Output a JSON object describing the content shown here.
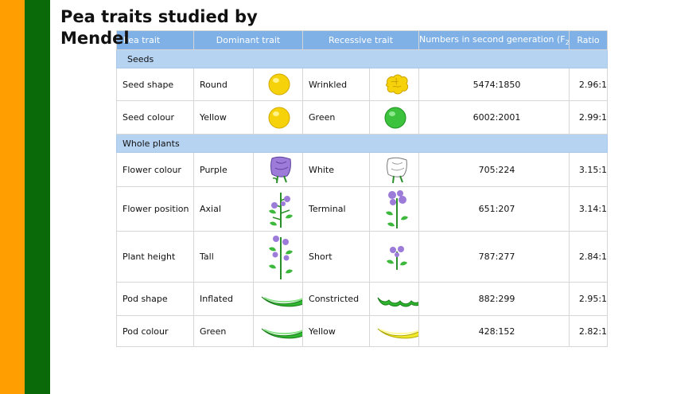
{
  "slide": {
    "title": "Pea traits studied by Mendel"
  },
  "table": {
    "headers": [
      "Pea trait",
      "Dominant trait",
      "Recessive trait",
      "Numbers in second generation (F",
      "2",
      ")",
      "Ratio"
    ],
    "sections": [
      {
        "label": "Seeds"
      },
      {
        "label": "Whole plants"
      }
    ],
    "rows": [
      {
        "trait": "Seed shape",
        "dominant": "Round",
        "recessive": "Wrinkled",
        "numbers": "5474:1850",
        "ratio": "2.96:1",
        "dom_icon": "round-seed-icon",
        "rec_icon": "wrinkled-seed-icon"
      },
      {
        "trait": "Seed colour",
        "dominant": "Yellow",
        "recessive": "Green",
        "numbers": "6002:2001",
        "ratio": "2.99:1",
        "dom_icon": "yellow-seed-icon",
        "rec_icon": "green-seed-icon"
      },
      {
        "trait": "Flower colour",
        "dominant": "Purple",
        "recessive": "White",
        "numbers": "705:224",
        "ratio": "3.15:1",
        "dom_icon": "purple-flower-icon",
        "rec_icon": "white-flower-icon"
      },
      {
        "trait": "Flower position",
        "dominant": "Axial",
        "recessive": "Terminal",
        "numbers": "651:207",
        "ratio": "3.14:1",
        "dom_icon": "axial-flower-plant-icon",
        "rec_icon": "terminal-flower-plant-icon"
      },
      {
        "trait": "Plant height",
        "dominant": "Tall",
        "recessive": "Short",
        "numbers": "787:277",
        "ratio": "2.84:1",
        "dom_icon": "tall-plant-icon",
        "rec_icon": "short-plant-icon"
      },
      {
        "trait": "Pod shape",
        "dominant": "Inflated",
        "recessive": "Constricted",
        "numbers": "882:299",
        "ratio": "2.95:1",
        "dom_icon": "inflated-pod-icon",
        "rec_icon": "constricted-pod-icon"
      },
      {
        "trait": "Pod colour",
        "dominant": "Green",
        "recessive": "Yellow",
        "numbers": "428:152",
        "ratio": "2.82:1",
        "dom_icon": "green-pod-icon",
        "rec_icon": "yellow-pod-icon"
      }
    ]
  },
  "colors": {
    "orange_bar": "#ff9e00",
    "green_bar": "#0a6a0a",
    "header_blue": "#7fb1e6",
    "section_blue": "#b6d3f2",
    "seed_yellow": "#f5d20a",
    "seed_green": "#3cc23c",
    "flower_purple": "#9c7bd9",
    "pod_green": "#2fb52f",
    "pod_yellow": "#f0e82a"
  }
}
